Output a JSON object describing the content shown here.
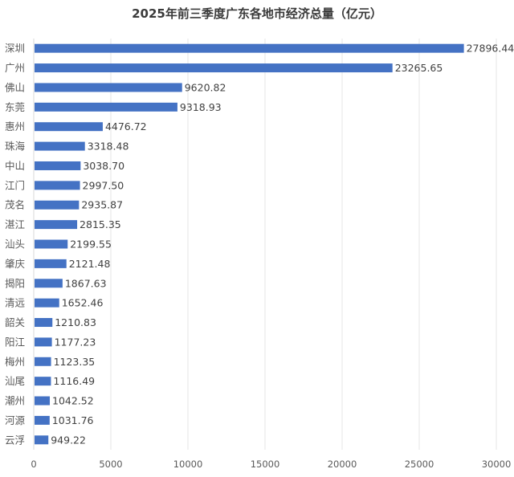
{
  "chart_data": {
    "type": "bar",
    "orientation": "horizontal",
    "title": "2025年前三季度广东各地市经济总量（亿元）",
    "categories": [
      "深圳",
      "广州",
      "佛山",
      "东莞",
      "惠州",
      "珠海",
      "中山",
      "江门",
      "茂名",
      "湛江",
      "汕头",
      "肇庆",
      "揭阳",
      "清远",
      "韶关",
      "阳江",
      "梅州",
      "汕尾",
      "潮州",
      "河源",
      "云浮"
    ],
    "values": [
      27896.44,
      23265.65,
      9620.82,
      9318.93,
      4476.72,
      3318.48,
      3038.7,
      2997.5,
      2935.87,
      2815.35,
      2199.55,
      2121.48,
      1867.63,
      1652.46,
      1210.83,
      1177.23,
      1123.35,
      1116.49,
      1042.52,
      1031.76,
      949.22
    ],
    "value_labels": [
      "27896.44",
      "23265.65",
      "9620.82",
      "9318.93",
      "4476.72",
      "3318.48",
      "3038.70",
      "2997.50",
      "2935.87",
      "2815.35",
      "2199.55",
      "2121.48",
      "1867.63",
      "1652.46",
      "1210.83",
      "1177.23",
      "1123.35",
      "1116.49",
      "1042.52",
      "1031.76",
      "949.22"
    ],
    "xlim": [
      0,
      30000
    ],
    "xticks": [
      "0",
      "5000",
      "10000",
      "15000",
      "20000",
      "25000",
      "30000"
    ],
    "xtick_values": [
      0,
      5000,
      10000,
      15000,
      20000,
      25000,
      30000
    ],
    "grid": "vertical",
    "legend": "none",
    "bar_color": "#4472C4",
    "grid_color": "#e6e6e6"
  }
}
